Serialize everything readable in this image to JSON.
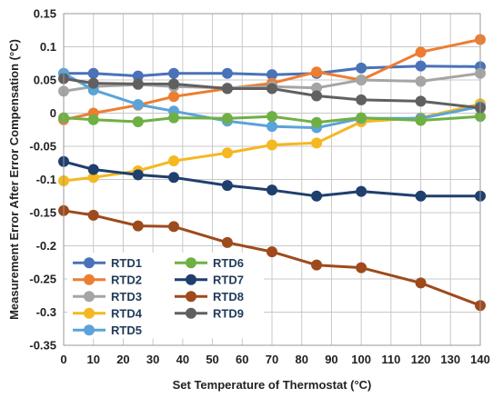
{
  "chart_data": {
    "type": "line",
    "title": "",
    "xlabel": "Set Temperature of Thermostat (°C)",
    "ylabel": "Measurement Error After Error Compensation (°C)",
    "xlim": [
      0,
      140
    ],
    "ylim": [
      -0.35,
      0.15
    ],
    "x_ticks": [
      0,
      10,
      20,
      30,
      40,
      50,
      60,
      70,
      80,
      90,
      100,
      110,
      120,
      130,
      140
    ],
    "x_tick_labels": [
      "0",
      "10",
      "20",
      "30",
      "40",
      "50",
      "60",
      "70",
      "80",
      "90",
      "100",
      "110",
      "120",
      "130",
      "140"
    ],
    "y_ticks": [
      0.15,
      0.1,
      0.05,
      0,
      -0.05,
      -0.1,
      -0.15,
      -0.2,
      -0.25,
      -0.3,
      -0.35
    ],
    "y_tick_labels": [
      "0.15",
      "0.1",
      "0.05",
      "0",
      "-0.05",
      "-0.1",
      "-0.15",
      "-0.2",
      "-0.25",
      "-0.3",
      "-0.35"
    ],
    "grid": true,
    "legend_position": "bottom-left",
    "x": [
      0,
      10,
      25,
      37,
      55,
      70,
      85,
      100,
      120,
      140
    ],
    "series": [
      {
        "name": "RTD1",
        "color": "#4a72b8",
        "values": [
          0.06,
          0.06,
          0.056,
          0.06,
          0.06,
          0.058,
          0.06,
          0.068,
          0.071,
          0.07
        ]
      },
      {
        "name": "RTD2",
        "color": "#ed7d31",
        "values": [
          -0.01,
          0.0,
          0.012,
          0.025,
          0.037,
          0.045,
          0.062,
          0.05,
          0.092,
          0.111
        ]
      },
      {
        "name": "RTD3",
        "color": "#a5a5a5",
        "values": [
          0.033,
          0.04,
          0.043,
          0.04,
          0.038,
          0.04,
          0.038,
          0.05,
          0.048,
          0.06
        ]
      },
      {
        "name": "RTD4",
        "color": "#f4b820",
        "values": [
          -0.102,
          -0.097,
          -0.087,
          -0.072,
          -0.06,
          -0.048,
          -0.045,
          -0.013,
          -0.007,
          0.014
        ]
      },
      {
        "name": "RTD5",
        "color": "#5ba3d8",
        "values": [
          0.06,
          0.035,
          0.013,
          0.003,
          -0.012,
          -0.02,
          -0.022,
          -0.008,
          -0.008,
          0.01
        ]
      },
      {
        "name": "RTD6",
        "color": "#6fb045",
        "values": [
          -0.007,
          -0.01,
          -0.013,
          -0.007,
          -0.008,
          -0.005,
          -0.014,
          -0.007,
          -0.011,
          -0.005
        ]
      },
      {
        "name": "RTD7",
        "color": "#1f3f6e",
        "values": [
          -0.073,
          -0.085,
          -0.093,
          -0.097,
          -0.109,
          -0.116,
          -0.125,
          -0.118,
          -0.125,
          -0.125
        ]
      },
      {
        "name": "RTD8",
        "color": "#9e4a1c",
        "values": [
          -0.147,
          -0.154,
          -0.17,
          -0.171,
          -0.195,
          -0.209,
          -0.229,
          -0.233,
          -0.256,
          -0.29
        ]
      },
      {
        "name": "RTD9",
        "color": "#606060",
        "values": [
          0.052,
          0.045,
          0.044,
          0.044,
          0.037,
          0.037,
          0.026,
          0.02,
          0.018,
          0.008
        ]
      }
    ]
  }
}
